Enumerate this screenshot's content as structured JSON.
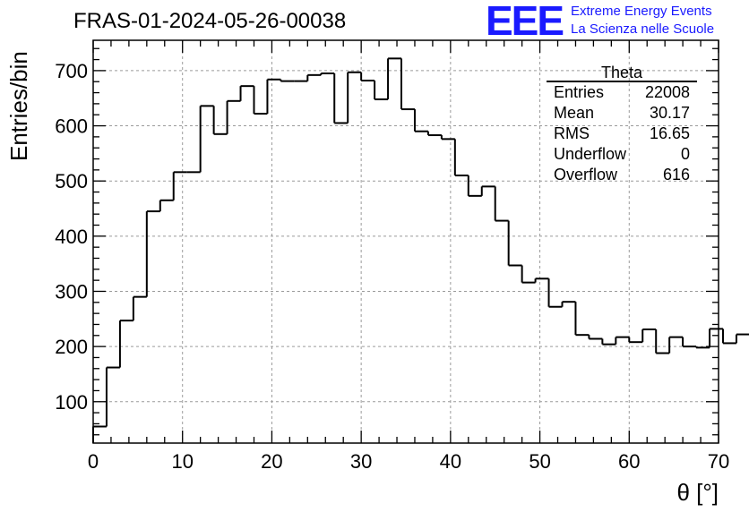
{
  "header": {
    "title": "FRAS-01-2024-05-26-00038",
    "logo_text": "EEE",
    "logo_line1": "Extreme Energy Events",
    "logo_line2": "La Scienza nelle Scuole"
  },
  "stats_box": {
    "title": "Theta",
    "rows": [
      {
        "label": "Entries",
        "value": "22008"
      },
      {
        "label": "Mean",
        "value": "30.17"
      },
      {
        "label": "RMS",
        "value": "16.65"
      },
      {
        "label": "Underflow",
        "value": "0"
      },
      {
        "label": "Overflow",
        "value": "616"
      }
    ]
  },
  "colors": {
    "logo": "#1a1aff",
    "line": "#000000",
    "grid": "#9a9a9a"
  },
  "chart_data": {
    "type": "bar",
    "style": "step-histogram",
    "xlabel": "θ [°]",
    "ylabel": "Entries/bin",
    "xlim": [
      0,
      70
    ],
    "ylim": [
      25,
      755
    ],
    "grid": true,
    "bin_width": 1.5,
    "bin_edges_start": 0,
    "x_ticks": [
      0,
      10,
      20,
      30,
      40,
      50,
      60,
      70
    ],
    "y_ticks": [
      100,
      200,
      300,
      400,
      500,
      600,
      700
    ],
    "values": [
      55,
      162,
      247,
      290,
      445,
      465,
      516,
      516,
      636,
      585,
      645,
      672,
      622,
      684,
      681,
      681,
      692,
      695,
      605,
      697,
      682,
      648,
      722,
      630,
      590,
      583,
      576,
      510,
      473,
      490,
      428,
      347,
      316,
      323,
      272,
      281,
      221,
      214,
      204,
      217,
      208,
      231,
      188,
      217,
      200,
      198,
      232,
      206,
      222
    ]
  }
}
